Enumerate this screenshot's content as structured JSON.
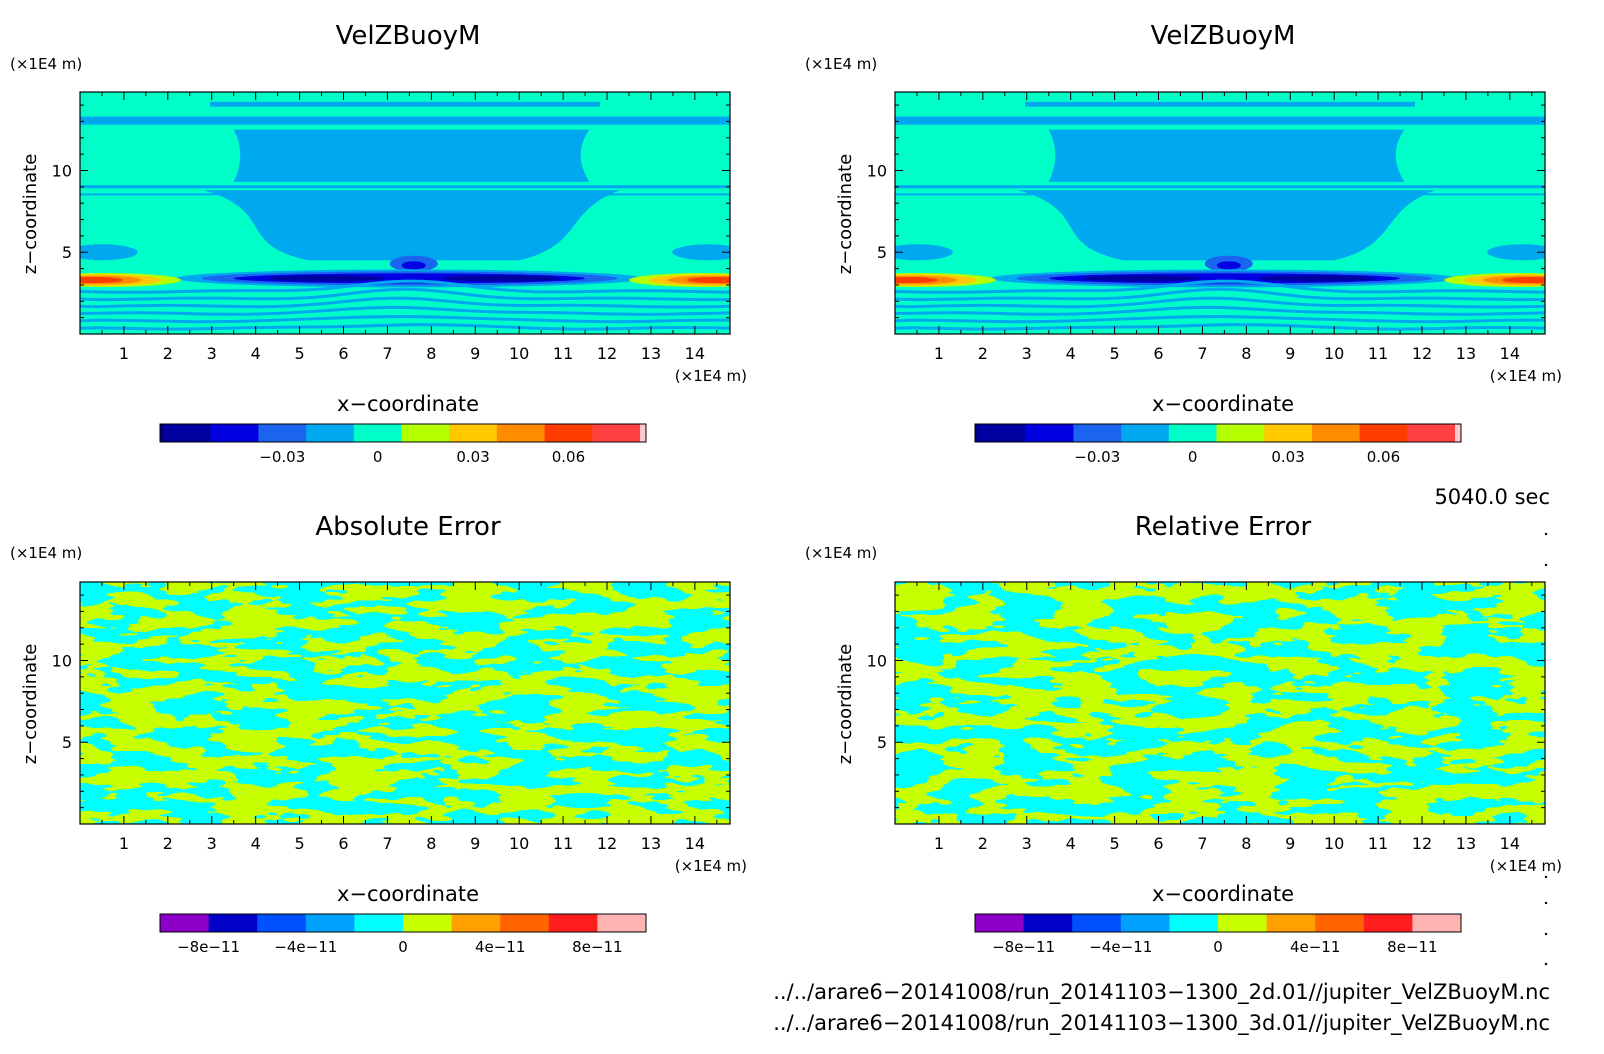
{
  "panels": [
    {
      "title": "VelZBuoyM",
      "x_label": "x−coordinate",
      "y_label": "z−coordinate",
      "x_unit": "(×1E4 m)",
      "y_unit": "(×1E4 m)",
      "field": "velz"
    },
    {
      "title": "VelZBuoyM",
      "x_label": "x−coordinate",
      "y_label": "z−coordinate",
      "x_unit": "(×1E4 m)",
      "y_unit": "(×1E4 m)",
      "field": "velz"
    },
    {
      "title": "Absolute Error",
      "x_label": "x−coordinate",
      "y_label": "z−coordinate",
      "x_unit": "(×1E4 m)",
      "y_unit": "(×1E4 m)",
      "field": "noise"
    },
    {
      "title": "Relative Error",
      "x_label": "x−coordinate",
      "y_label": "z−coordinate",
      "x_unit": "(×1E4 m)",
      "y_unit": "(×1E4 m)",
      "field": "noise2"
    }
  ],
  "time_label": "5040.0 sec",
  "file_lines": [
    "../../arare6−20141008/run_20141103−1300_2d.01//jupiter_VelZBuoyM.nc",
    "../../arare6−20141008/run_20141103−1300_3d.01//jupiter_VelZBuoyM.nc"
  ],
  "chart_data": {
    "type": "heatmap",
    "xlim": [
      0,
      14.8
    ],
    "ylim": [
      0,
      14.8
    ],
    "x_ticks": [
      1,
      2,
      3,
      4,
      5,
      6,
      7,
      8,
      9,
      10,
      11,
      12,
      13,
      14
    ],
    "y_ticks": [
      5,
      10
    ],
    "colorbars": {
      "velz": {
        "colors": [
          "#0000a0",
          "#0000e0",
          "#1a64f0",
          "#00a8f0",
          "#00ffc8",
          "#b4ff00",
          "#ffc800",
          "#ff8c00",
          "#ff3c00",
          "#ff4040",
          "#ffc8c8"
        ],
        "tick_labels": [
          "−0.03",
          "0",
          "0.03",
          "0.06"
        ],
        "tick_values": [
          -0.03,
          0,
          0.03,
          0.06
        ]
      },
      "error": {
        "colors": [
          "#8c00c8",
          "#0000c8",
          "#0050ff",
          "#00a0ff",
          "#00ffff",
          "#c8ff00",
          "#ffa000",
          "#ff6400",
          "#ff1e1e",
          "#ffb4b4"
        ],
        "tick_labels": [
          "−8e−11",
          "−4e−11",
          "0",
          "4e−11",
          "8e−11"
        ],
        "tick_values": [
          -8e-11,
          -4e-11,
          0,
          4e-11,
          8e-11
        ]
      }
    }
  }
}
